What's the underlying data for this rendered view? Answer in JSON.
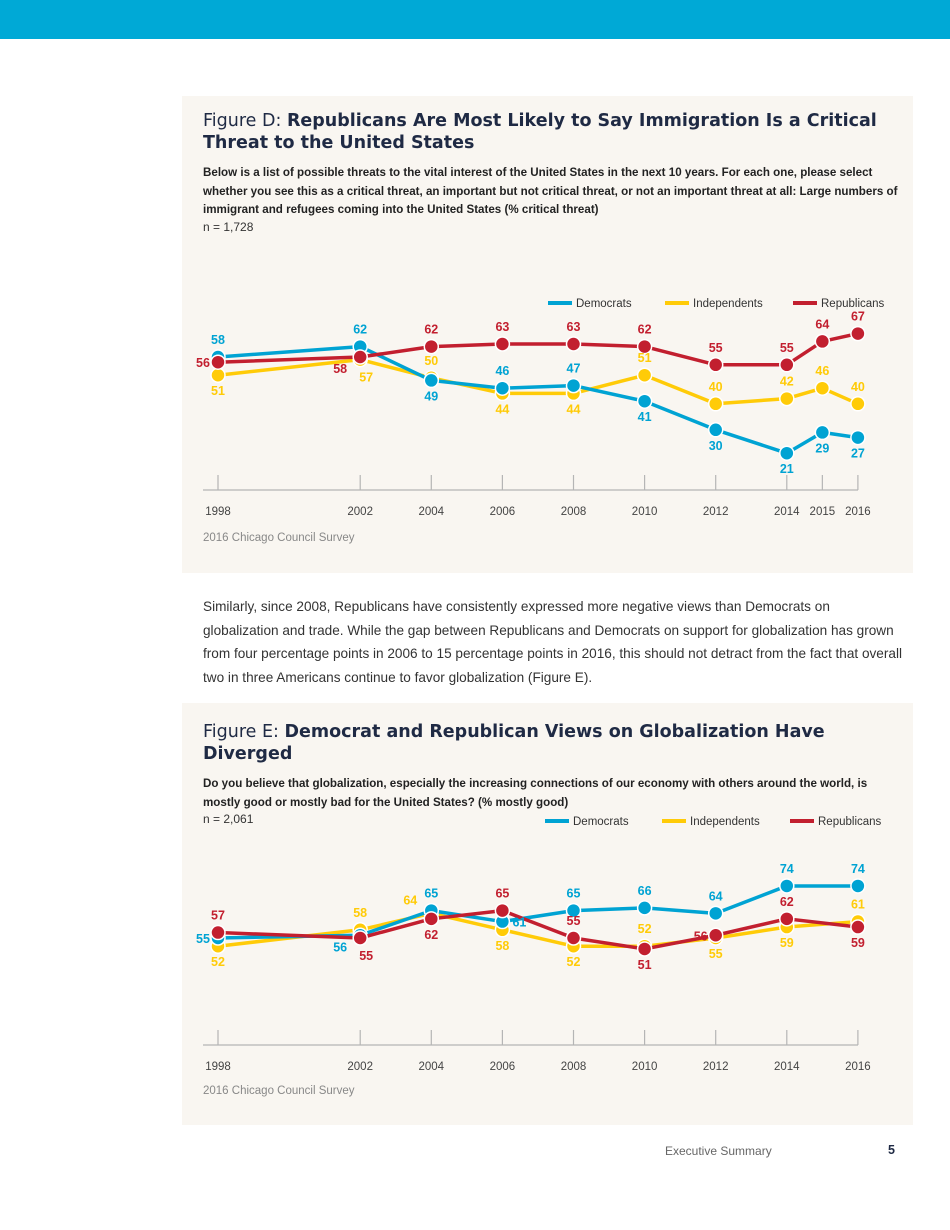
{
  "colors": {
    "header_bar": "#00A9D6",
    "panel_bg": "#F9F6F1",
    "democrats": "#00A3D3",
    "independents": "#FFCB08",
    "republicans": "#C21F2F"
  },
  "figure_d": {
    "prefix": "Figure D: ",
    "title": "Republicans Are Most Likely to Say Immigration Is a Critical Threat to the United States",
    "question": "Below is a list of possible threats to the vital interest of the United States in the next 10 years. For each one, please select whether you see this as a critical threat, an important but not critical threat, or not an important threat at all: ",
    "question_bold": "Large numbers of immigrant and refugees coming into the United States (% critical threat)",
    "n": "n = 1,728",
    "source": "2016 Chicago Council Survey"
  },
  "paragraph": "Similarly, since 2008, Republicans have consistently expressed more negative views than Democrats on globalization and trade. While the gap between Republicans and Democrats on support for globalization has grown from four percentage points in 2006 to 15 percentage points in 2016, this should not detract from the fact that overall two in three Americans continue to favor globalization (Figure E).",
  "figure_e": {
    "prefix": "Figure E: ",
    "title": "Democrat and Republican Views on Globalization Have Diverged",
    "question": "Do you believe that globalization, especially the increasing connections of our economy with others around the world, is mostly good or mostly bad for the United States? (% mostly good)",
    "n": "n = 2,061",
    "source": "2016 Chicago Council Survey"
  },
  "footer": {
    "section": "Executive Summary",
    "page_number": "5"
  },
  "chart_data": [
    {
      "type": "line",
      "title": "Republicans Are Most Likely to Say Immigration Is a Critical Threat to the United States",
      "x": [
        "1998",
        "2002",
        "2004",
        "2006",
        "2008",
        "2010",
        "2012",
        "2014",
        "2015",
        "2016"
      ],
      "legend": "top-right",
      "grid": false,
      "series": [
        {
          "name": "Democrats",
          "color": "#00A3D3",
          "values": [
            58,
            62,
            49,
            46,
            47,
            41,
            30,
            21,
            29,
            27
          ]
        },
        {
          "name": "Independents",
          "color": "#FFCB08",
          "values": [
            51,
            57,
            50,
            44,
            44,
            51,
            40,
            42,
            46,
            40
          ]
        },
        {
          "name": "Republicans",
          "color": "#C21F2F",
          "values": [
            56,
            58,
            62,
            63,
            63,
            62,
            55,
            55,
            64,
            67
          ]
        }
      ]
    },
    {
      "type": "line",
      "title": "Democrat and Republican Views on Globalization Have Diverged",
      "x": [
        "1998",
        "2002",
        "2004",
        "2006",
        "2008",
        "2010",
        "2012",
        "2014",
        "2016"
      ],
      "legend": "top-right",
      "grid": false,
      "series": [
        {
          "name": "Democrats",
          "color": "#00A3D3",
          "values": [
            55,
            56,
            65,
            61,
            65,
            66,
            64,
            74,
            74
          ]
        },
        {
          "name": "Independents",
          "color": "#FFCB08",
          "values": [
            52,
            58,
            64,
            58,
            52,
            52,
            55,
            59,
            61
          ]
        },
        {
          "name": "Republicans",
          "color": "#C21F2F",
          "values": [
            57,
            55,
            62,
            65,
            55,
            51,
            56,
            62,
            59
          ]
        }
      ]
    }
  ]
}
